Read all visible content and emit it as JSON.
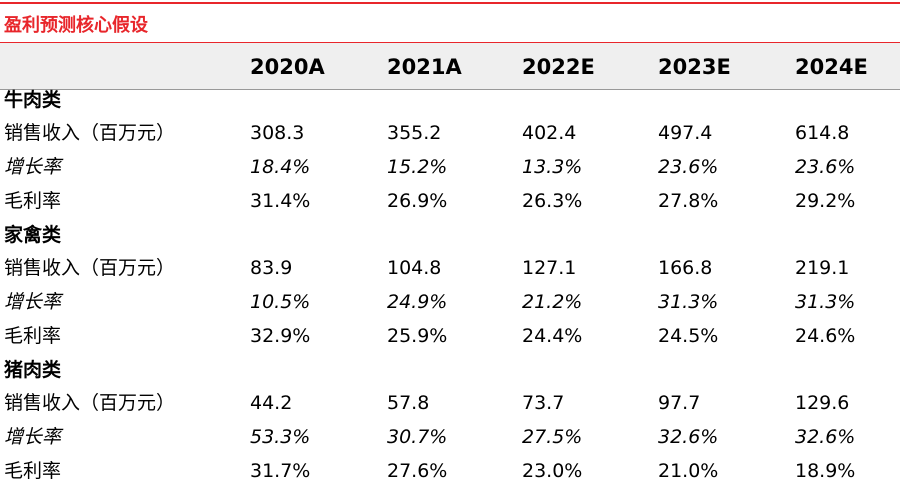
{
  "title": "盈利预测核心假设",
  "table": {
    "columns": [
      "2020A",
      "2021A",
      "2022E",
      "2023E",
      "2024E"
    ],
    "sections": [
      {
        "name": "牛肉类",
        "rows": [
          {
            "label": "销售收入（百万元）",
            "values": [
              "308.3",
              "355.2",
              "402.4",
              "497.4",
              "614.8"
            ]
          },
          {
            "label": "增长率",
            "values": [
              "18.4%",
              "15.2%",
              "13.3%",
              "23.6%",
              "23.6%"
            ]
          },
          {
            "label": "毛利率",
            "values": [
              "31.4%",
              "26.9%",
              "26.3%",
              "27.8%",
              "29.2%"
            ]
          }
        ]
      },
      {
        "name": "家禽类",
        "rows": [
          {
            "label": "销售收入（百万元）",
            "values": [
              "83.9",
              "104.8",
              "127.1",
              "166.8",
              "219.1"
            ]
          },
          {
            "label": "增长率",
            "values": [
              "10.5%",
              "24.9%",
              "21.2%",
              "31.3%",
              "31.3%"
            ]
          },
          {
            "label": "毛利率",
            "values": [
              "32.9%",
              "25.9%",
              "24.4%",
              "24.5%",
              "24.6%"
            ]
          }
        ]
      },
      {
        "name": "猪肉类",
        "rows": [
          {
            "label": "销售收入（百万元）",
            "values": [
              "44.2",
              "57.8",
              "73.7",
              "97.7",
              "129.6"
            ]
          },
          {
            "label": "增长率",
            "values": [
              "53.3%",
              "30.7%",
              "27.5%",
              "32.6%",
              "32.6%"
            ]
          },
          {
            "label": "毛利率",
            "values": [
              "31.7%",
              "27.6%",
              "23.0%",
              "21.0%",
              "18.9%"
            ]
          }
        ]
      }
    ]
  }
}
